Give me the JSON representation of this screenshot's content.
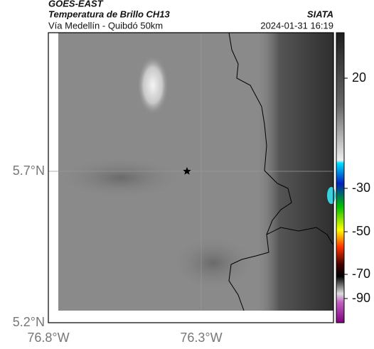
{
  "header": {
    "title": "GOES-EAST",
    "subtitle": "Temperatura de Brillo CH13",
    "location": "Vía Medellín - Quibdó 50km",
    "source": "SIATA",
    "timestamp": "2024-01-31 16:19"
  },
  "map": {
    "lat_labels": [
      "5.7°N",
      "5.2°N"
    ],
    "lon_labels": [
      "76.8°W",
      "76.3°W"
    ]
  },
  "colorbar": {
    "ticks": [
      20,
      -30,
      -50,
      -70,
      -90
    ]
  }
}
